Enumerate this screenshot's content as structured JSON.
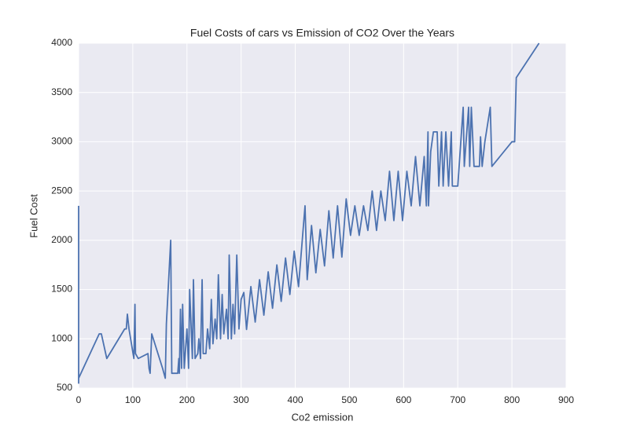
{
  "chart_data": {
    "type": "line",
    "title": "Fuel Costs of cars vs Emission of CO2 Over the Years",
    "x_label": "Co2 emission",
    "y_label": "Fuel Cost",
    "xlim": [
      0,
      900
    ],
    "xticks": [
      0,
      100,
      200,
      300,
      400,
      500,
      600,
      700,
      800,
      900
    ],
    "ylim": [
      500,
      4000
    ],
    "yticks": [
      500,
      1000,
      1500,
      2000,
      2500,
      3000,
      3500,
      4000
    ],
    "grid": true,
    "x": [
      0,
      0,
      0,
      38,
      42,
      52,
      85,
      88,
      90,
      93,
      102,
      104,
      105,
      110,
      128,
      130,
      132,
      135,
      155,
      160,
      162,
      170,
      172,
      183,
      185,
      186,
      188,
      190,
      192,
      195,
      200,
      203,
      205,
      210,
      212,
      215,
      220,
      222,
      225,
      228,
      230,
      235,
      238,
      242,
      245,
      248,
      252,
      255,
      258,
      262,
      265,
      268,
      273,
      276,
      278,
      282,
      285,
      288,
      292,
      296,
      300,
      305,
      310,
      318,
      326,
      334,
      342,
      350,
      358,
      366,
      374,
      382,
      390,
      398,
      406,
      418,
      422,
      430,
      438,
      446,
      454,
      462,
      470,
      478,
      486,
      494,
      502,
      510,
      518,
      526,
      534,
      542,
      550,
      558,
      566,
      574,
      582,
      590,
      598,
      606,
      614,
      622,
      630,
      638,
      642,
      645,
      646,
      650,
      655,
      662,
      665,
      670,
      673,
      678,
      683,
      688,
      690,
      700,
      710,
      712,
      720,
      722,
      725,
      730,
      740,
      742,
      745,
      750,
      760,
      763,
      800,
      805,
      808,
      850
    ],
    "series": [
      {
        "name": "Fuel Cost",
        "color": "#4c72b0",
        "values": [
          2350,
          550,
          600,
          1050,
          1050,
          800,
          1100,
          1100,
          1250,
          1100,
          800,
          1350,
          850,
          800,
          850,
          700,
          650,
          1050,
          700,
          600,
          1150,
          2000,
          650,
          650,
          800,
          650,
          1300,
          700,
          1350,
          700,
          1100,
          700,
          1500,
          800,
          1600,
          800,
          850,
          1000,
          800,
          1600,
          850,
          850,
          1100,
          900,
          1400,
          950,
          1200,
          1000,
          1650,
          1000,
          1450,
          1050,
          1300,
          1000,
          1850,
          1000,
          1350,
          1050,
          1850,
          1100,
          1400,
          1470,
          1095,
          1530,
          1170,
          1600,
          1240,
          1680,
          1310,
          1750,
          1380,
          1820,
          1450,
          1890,
          1530,
          2350,
          1600,
          2150,
          1670,
          2110,
          1740,
          2300,
          1820,
          2350,
          1830,
          2420,
          2050,
          2350,
          2050,
          2350,
          2100,
          2500,
          2100,
          2500,
          2200,
          2700,
          2200,
          2700,
          2200,
          2700,
          2350,
          2850,
          2350,
          2850,
          2350,
          3100,
          2350,
          2900,
          3100,
          3100,
          2550,
          3100,
          2550,
          3100,
          2550,
          3100,
          2550,
          2550,
          3350,
          2750,
          3350,
          2750,
          3350,
          2750,
          2750,
          3050,
          2750,
          3000,
          3350,
          2750,
          3000,
          3000,
          3650,
          4000
        ]
      }
    ]
  }
}
